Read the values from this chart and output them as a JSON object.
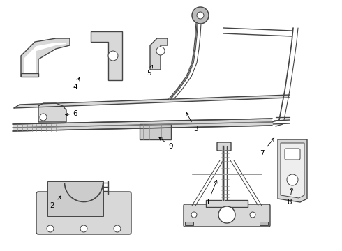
{
  "bg_color": "#ffffff",
  "line_color": "#444444",
  "fill_color": "#d8d8d8",
  "fig_width": 4.9,
  "fig_height": 3.6,
  "dpi": 100
}
